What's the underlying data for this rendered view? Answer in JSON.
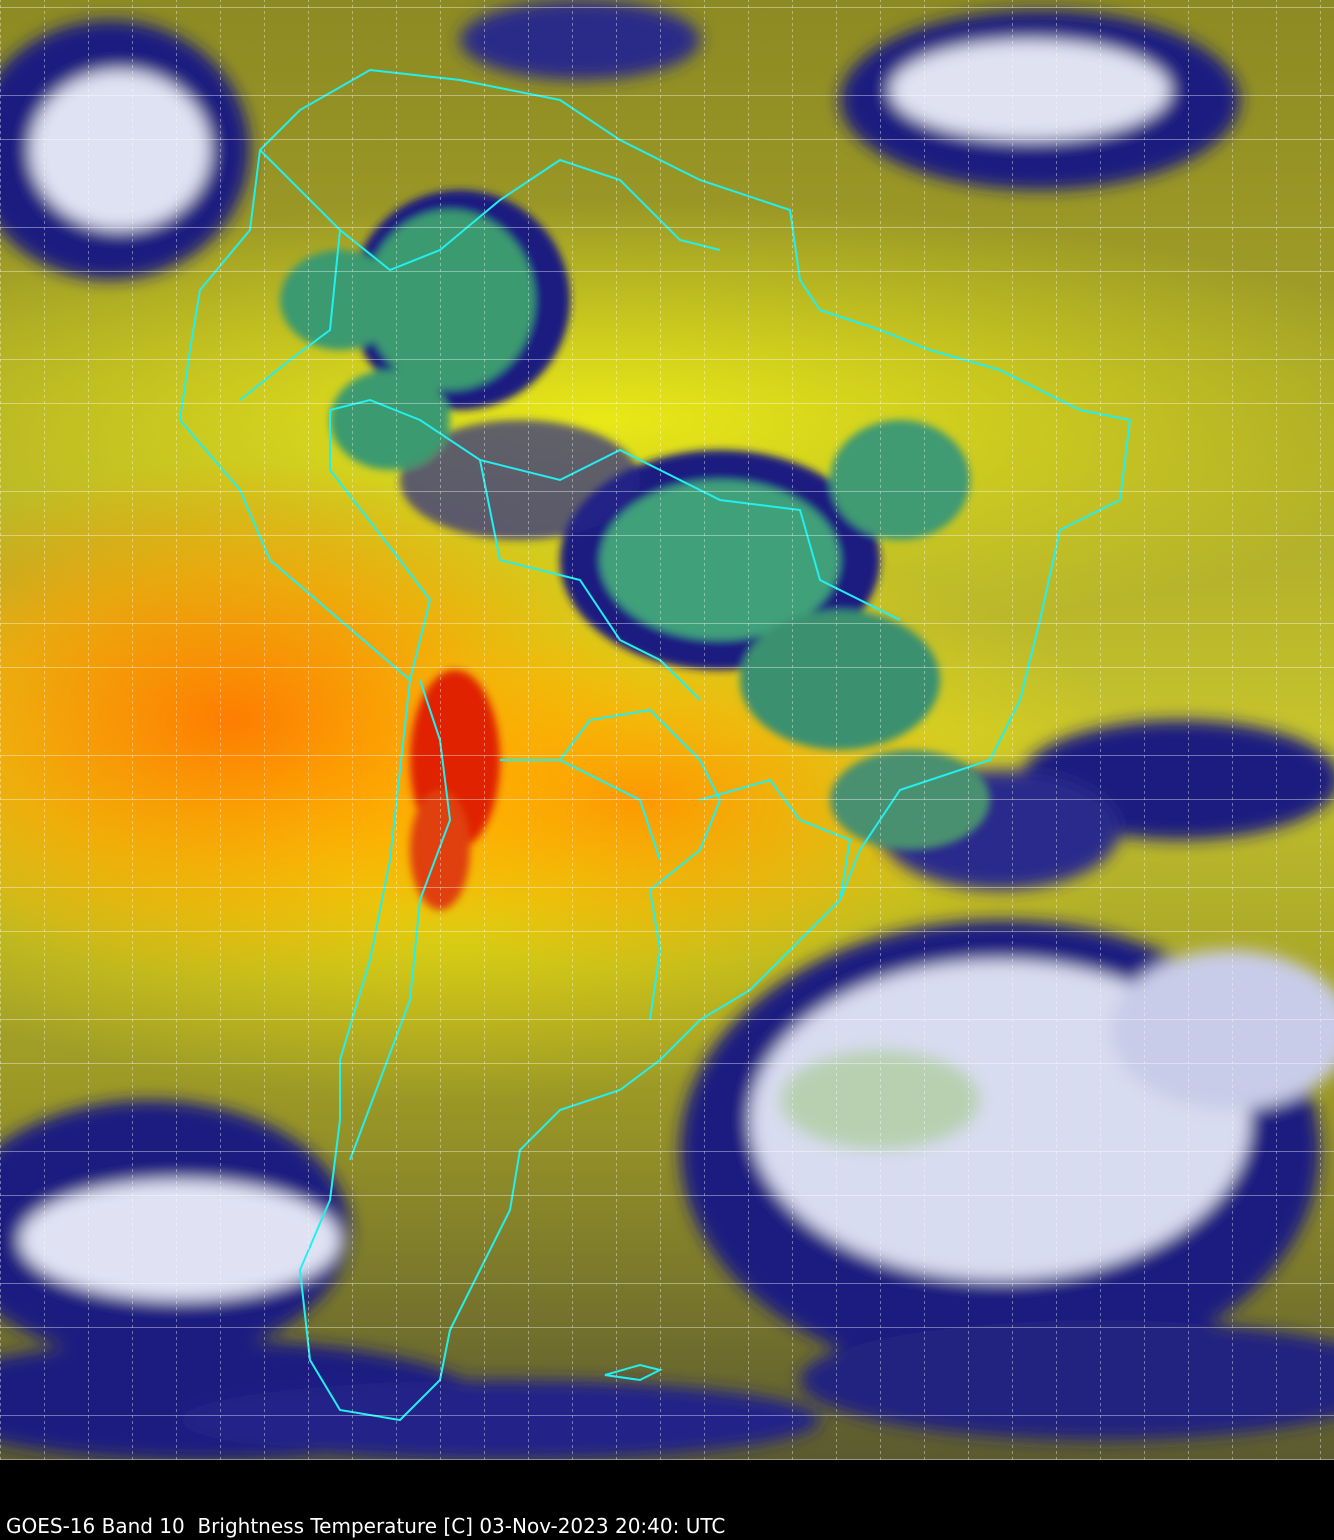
{
  "caption": "GOES-16 Band 10  Brightness Temperature [C] 03-Nov-2023 20:40: UTC"
}
